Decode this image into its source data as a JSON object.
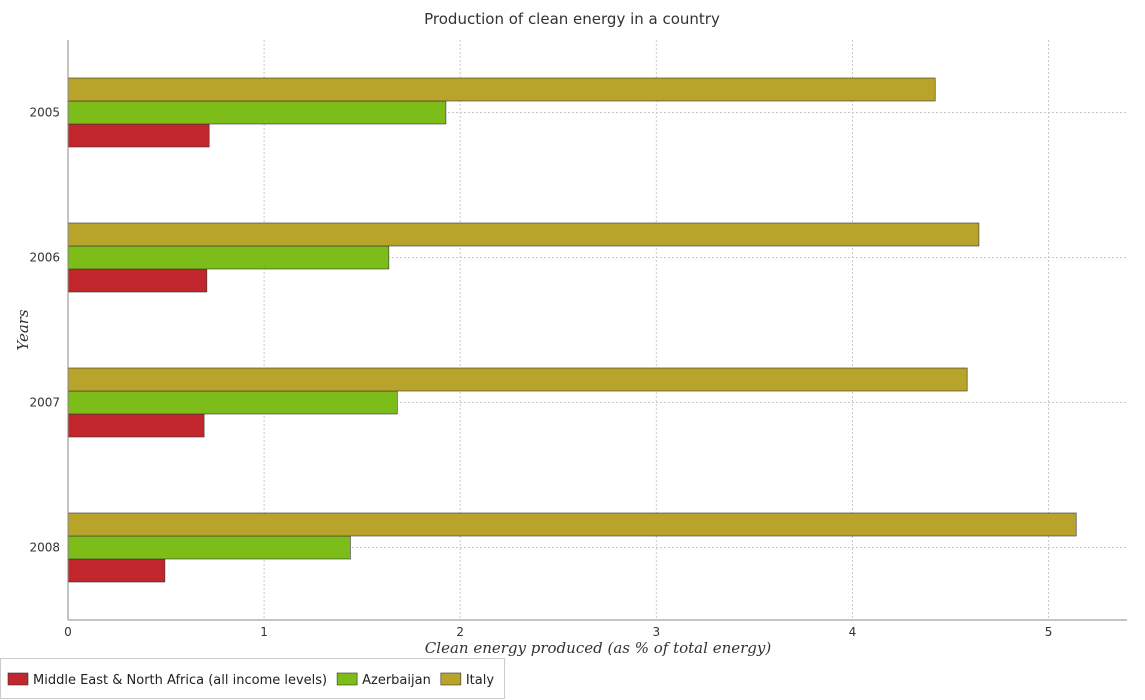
{
  "chart_data": {
    "type": "bar",
    "orientation": "horizontal",
    "title": "Production of clean energy in a country",
    "xlabel": "Clean energy produced (as % of total energy)",
    "ylabel": "Years",
    "categories": [
      "2005",
      "2006",
      "2007",
      "2008"
    ],
    "series": [
      {
        "name": "Middle East & North Africa (all income levels)",
        "color": "#c1272d",
        "values": [
          0.72,
          0.708,
          0.694,
          0.494
        ]
      },
      {
        "name": "Azerbaijan",
        "color": "#7dbd1a",
        "values": [
          1.927,
          1.636,
          1.679,
          1.44
        ]
      },
      {
        "name": "Italy",
        "color": "#b8a42a",
        "values": [
          4.422,
          4.645,
          4.585,
          5.141
        ]
      }
    ],
    "xlim": [
      0,
      5.4
    ],
    "xticks": [
      0,
      1,
      2,
      3,
      4,
      5
    ],
    "grid": true,
    "legend_position": "bottom-left"
  }
}
